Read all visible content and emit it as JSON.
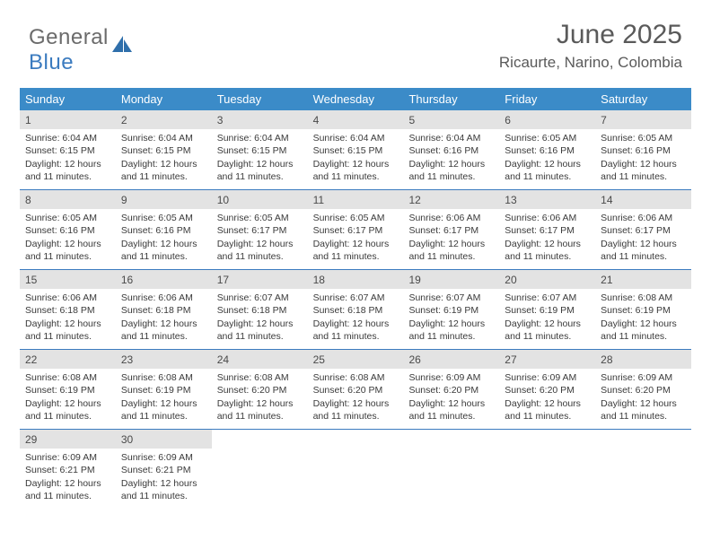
{
  "logo": {
    "text_general": "General",
    "text_blue": "Blue",
    "icon_color": "#2f6fab"
  },
  "header": {
    "month_title": "June 2025",
    "location": "Ricaurte, Narino, Colombia"
  },
  "colors": {
    "weekday_bg": "#3b8bc8",
    "weekday_text": "#ffffff",
    "week_divider": "#3b7bbf",
    "daynum_bg": "#e3e3e3",
    "body_text": "#3a3a3a",
    "header_text": "#5a5a5a"
  },
  "weekdays": [
    "Sunday",
    "Monday",
    "Tuesday",
    "Wednesday",
    "Thursday",
    "Friday",
    "Saturday"
  ],
  "weeks": [
    [
      {
        "day": "1",
        "sunrise": "Sunrise: 6:04 AM",
        "sunset": "Sunset: 6:15 PM",
        "daylight": "Daylight: 12 hours and 11 minutes."
      },
      {
        "day": "2",
        "sunrise": "Sunrise: 6:04 AM",
        "sunset": "Sunset: 6:15 PM",
        "daylight": "Daylight: 12 hours and 11 minutes."
      },
      {
        "day": "3",
        "sunrise": "Sunrise: 6:04 AM",
        "sunset": "Sunset: 6:15 PM",
        "daylight": "Daylight: 12 hours and 11 minutes."
      },
      {
        "day": "4",
        "sunrise": "Sunrise: 6:04 AM",
        "sunset": "Sunset: 6:15 PM",
        "daylight": "Daylight: 12 hours and 11 minutes."
      },
      {
        "day": "5",
        "sunrise": "Sunrise: 6:04 AM",
        "sunset": "Sunset: 6:16 PM",
        "daylight": "Daylight: 12 hours and 11 minutes."
      },
      {
        "day": "6",
        "sunrise": "Sunrise: 6:05 AM",
        "sunset": "Sunset: 6:16 PM",
        "daylight": "Daylight: 12 hours and 11 minutes."
      },
      {
        "day": "7",
        "sunrise": "Sunrise: 6:05 AM",
        "sunset": "Sunset: 6:16 PM",
        "daylight": "Daylight: 12 hours and 11 minutes."
      }
    ],
    [
      {
        "day": "8",
        "sunrise": "Sunrise: 6:05 AM",
        "sunset": "Sunset: 6:16 PM",
        "daylight": "Daylight: 12 hours and 11 minutes."
      },
      {
        "day": "9",
        "sunrise": "Sunrise: 6:05 AM",
        "sunset": "Sunset: 6:16 PM",
        "daylight": "Daylight: 12 hours and 11 minutes."
      },
      {
        "day": "10",
        "sunrise": "Sunrise: 6:05 AM",
        "sunset": "Sunset: 6:17 PM",
        "daylight": "Daylight: 12 hours and 11 minutes."
      },
      {
        "day": "11",
        "sunrise": "Sunrise: 6:05 AM",
        "sunset": "Sunset: 6:17 PM",
        "daylight": "Daylight: 12 hours and 11 minutes."
      },
      {
        "day": "12",
        "sunrise": "Sunrise: 6:06 AM",
        "sunset": "Sunset: 6:17 PM",
        "daylight": "Daylight: 12 hours and 11 minutes."
      },
      {
        "day": "13",
        "sunrise": "Sunrise: 6:06 AM",
        "sunset": "Sunset: 6:17 PM",
        "daylight": "Daylight: 12 hours and 11 minutes."
      },
      {
        "day": "14",
        "sunrise": "Sunrise: 6:06 AM",
        "sunset": "Sunset: 6:17 PM",
        "daylight": "Daylight: 12 hours and 11 minutes."
      }
    ],
    [
      {
        "day": "15",
        "sunrise": "Sunrise: 6:06 AM",
        "sunset": "Sunset: 6:18 PM",
        "daylight": "Daylight: 12 hours and 11 minutes."
      },
      {
        "day": "16",
        "sunrise": "Sunrise: 6:06 AM",
        "sunset": "Sunset: 6:18 PM",
        "daylight": "Daylight: 12 hours and 11 minutes."
      },
      {
        "day": "17",
        "sunrise": "Sunrise: 6:07 AM",
        "sunset": "Sunset: 6:18 PM",
        "daylight": "Daylight: 12 hours and 11 minutes."
      },
      {
        "day": "18",
        "sunrise": "Sunrise: 6:07 AM",
        "sunset": "Sunset: 6:18 PM",
        "daylight": "Daylight: 12 hours and 11 minutes."
      },
      {
        "day": "19",
        "sunrise": "Sunrise: 6:07 AM",
        "sunset": "Sunset: 6:19 PM",
        "daylight": "Daylight: 12 hours and 11 minutes."
      },
      {
        "day": "20",
        "sunrise": "Sunrise: 6:07 AM",
        "sunset": "Sunset: 6:19 PM",
        "daylight": "Daylight: 12 hours and 11 minutes."
      },
      {
        "day": "21",
        "sunrise": "Sunrise: 6:08 AM",
        "sunset": "Sunset: 6:19 PM",
        "daylight": "Daylight: 12 hours and 11 minutes."
      }
    ],
    [
      {
        "day": "22",
        "sunrise": "Sunrise: 6:08 AM",
        "sunset": "Sunset: 6:19 PM",
        "daylight": "Daylight: 12 hours and 11 minutes."
      },
      {
        "day": "23",
        "sunrise": "Sunrise: 6:08 AM",
        "sunset": "Sunset: 6:19 PM",
        "daylight": "Daylight: 12 hours and 11 minutes."
      },
      {
        "day": "24",
        "sunrise": "Sunrise: 6:08 AM",
        "sunset": "Sunset: 6:20 PM",
        "daylight": "Daylight: 12 hours and 11 minutes."
      },
      {
        "day": "25",
        "sunrise": "Sunrise: 6:08 AM",
        "sunset": "Sunset: 6:20 PM",
        "daylight": "Daylight: 12 hours and 11 minutes."
      },
      {
        "day": "26",
        "sunrise": "Sunrise: 6:09 AM",
        "sunset": "Sunset: 6:20 PM",
        "daylight": "Daylight: 12 hours and 11 minutes."
      },
      {
        "day": "27",
        "sunrise": "Sunrise: 6:09 AM",
        "sunset": "Sunset: 6:20 PM",
        "daylight": "Daylight: 12 hours and 11 minutes."
      },
      {
        "day": "28",
        "sunrise": "Sunrise: 6:09 AM",
        "sunset": "Sunset: 6:20 PM",
        "daylight": "Daylight: 12 hours and 11 minutes."
      }
    ],
    [
      {
        "day": "29",
        "sunrise": "Sunrise: 6:09 AM",
        "sunset": "Sunset: 6:21 PM",
        "daylight": "Daylight: 12 hours and 11 minutes."
      },
      {
        "day": "30",
        "sunrise": "Sunrise: 6:09 AM",
        "sunset": "Sunset: 6:21 PM",
        "daylight": "Daylight: 12 hours and 11 minutes."
      },
      {
        "empty": true
      },
      {
        "empty": true
      },
      {
        "empty": true
      },
      {
        "empty": true
      },
      {
        "empty": true
      }
    ]
  ]
}
